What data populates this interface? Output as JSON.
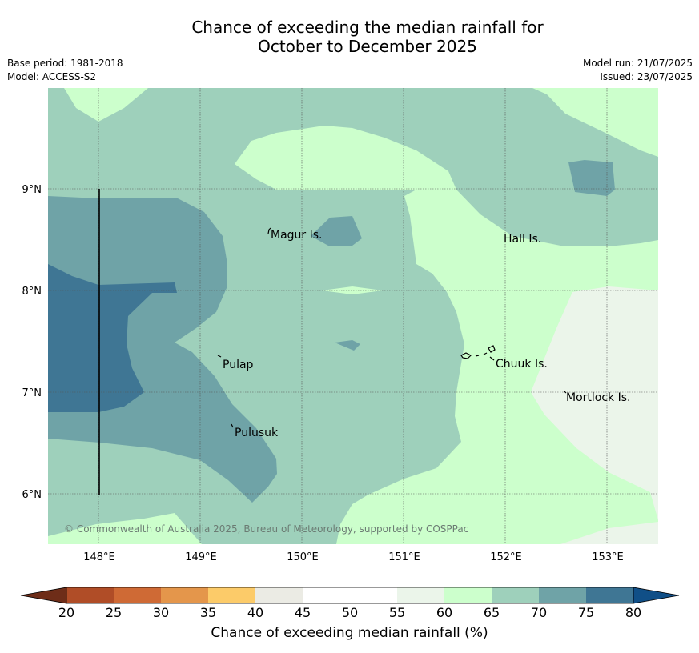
{
  "header": {
    "title_line1": "Chance of exceeding the median rainfall for",
    "title_line2": "October to December 2025",
    "base_period": "Base period: 1981-2018",
    "model": "Model: ACCESS-S2",
    "model_run": "Model run: 21/07/2025",
    "issued": "Issued: 23/07/2025"
  },
  "map": {
    "lon_ticks": [
      "148°E",
      "149°E",
      "150°E",
      "151°E",
      "152°E",
      "153°E"
    ],
    "lat_ticks": [
      "9°N",
      "8°N",
      "7°N",
      "6°N"
    ],
    "places": {
      "magur": "Magur Is.",
      "hall": "Hall Is.",
      "pulap": "Pulap",
      "chuuk": "Chuuk Is.",
      "mortlock": "Mortlock Is.",
      "pulusuk": "Pulusuk"
    },
    "copyright": "© Commonwealth of Australia 2025, Bureau of Meteorology, supported by COSPPac",
    "colors": {
      "c60_65": "#ccffcc",
      "c65_70": "#9ed0bb",
      "c70_75": "#6fa3a7",
      "c75_80": "#3f7694",
      "c55_60": "#ebf5ea",
      "grid": "#555555"
    }
  },
  "colorbar": {
    "label": "Chance of exceeding median rainfall (%)",
    "ticks": [
      "20",
      "25",
      "30",
      "35",
      "40",
      "45",
      "50",
      "55",
      "60",
      "65",
      "70",
      "75",
      "80"
    ],
    "colors": [
      "#6e2d18",
      "#b04d27",
      "#cf6a35",
      "#e4964b",
      "#fccb69",
      "#ebebe4",
      "#ffffff",
      "#ffffff",
      "#ebf5ea",
      "#ccffcc",
      "#9ed0bb",
      "#6fa3a7",
      "#3f7694",
      "#104f87"
    ]
  }
}
